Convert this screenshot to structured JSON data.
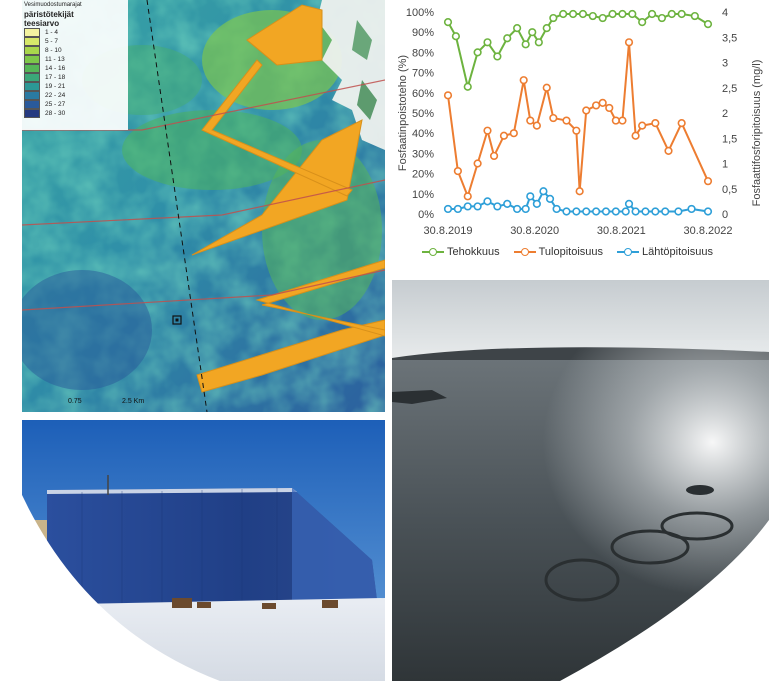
{
  "map": {
    "top_label": "Vesimuodostumarajat",
    "legend_title_1": "päristötekijät",
    "legend_title_2": "teesiarvo",
    "legend_items": [
      {
        "label": "1 - 4",
        "color": "#f3f3a0"
      },
      {
        "label": "5 - 7",
        "color": "#d6e86a"
      },
      {
        "label": "8 - 10",
        "color": "#a8d64c"
      },
      {
        "label": "11 - 13",
        "color": "#7ec74a"
      },
      {
        "label": "14 - 16",
        "color": "#55b657"
      },
      {
        "label": "17 - 18",
        "color": "#3aa779"
      },
      {
        "label": "19 - 21",
        "color": "#2c9896"
      },
      {
        "label": "22 - 24",
        "color": "#2a7aa2"
      },
      {
        "label": "25 - 27",
        "color": "#2a5a9a"
      },
      {
        "label": "28 - 30",
        "color": "#243a80"
      }
    ],
    "scale_left": "0.75",
    "scale_right": "2.5 Km"
  },
  "chart_data": {
    "type": "line",
    "y_left_label": "Fosfaatinpoistoteho (%)",
    "y_right_label": "Fosfaattifosforipitoisuus (mg/l)",
    "y_left_ticks": [
      "0%",
      "10%",
      "20%",
      "30%",
      "40%",
      "50%",
      "60%",
      "70%",
      "80%",
      "90%",
      "100%"
    ],
    "y_right_ticks": [
      "0",
      "0,5",
      "1",
      "1,5",
      "2",
      "2,5",
      "3",
      "3,5",
      "4"
    ],
    "x_ticks": [
      "30.8.2019",
      "30.8.2020",
      "30.8.2021",
      "30.8.2022"
    ],
    "ylim_left": [
      0,
      100
    ],
    "ylim_right": [
      0,
      4
    ],
    "legend_position": "bottom",
    "series": [
      {
        "name": "Tehokkuus",
        "axis": "left",
        "color": "#6db33f",
        "points": [
          [
            0.0,
            95
          ],
          [
            0.12,
            88
          ],
          [
            0.3,
            63
          ],
          [
            0.45,
            80
          ],
          [
            0.6,
            85
          ],
          [
            0.75,
            78
          ],
          [
            0.9,
            87
          ],
          [
            1.05,
            92
          ],
          [
            1.18,
            84
          ],
          [
            1.28,
            90
          ],
          [
            1.38,
            85
          ],
          [
            1.5,
            92
          ],
          [
            1.6,
            97
          ],
          [
            1.75,
            99
          ],
          [
            1.9,
            99
          ],
          [
            2.05,
            99
          ],
          [
            2.2,
            98
          ],
          [
            2.35,
            97
          ],
          [
            2.5,
            99
          ],
          [
            2.65,
            99
          ],
          [
            2.8,
            99
          ],
          [
            2.95,
            95
          ],
          [
            3.1,
            99
          ],
          [
            3.25,
            97
          ],
          [
            3.4,
            99
          ],
          [
            3.55,
            99
          ],
          [
            3.75,
            98
          ],
          [
            3.95,
            94
          ]
        ]
      },
      {
        "name": "Tulopitoisuus",
        "axis": "right",
        "color": "#ed7d31",
        "points": [
          [
            0.0,
            2.35
          ],
          [
            0.15,
            0.85
          ],
          [
            0.3,
            0.35
          ],
          [
            0.45,
            1.0
          ],
          [
            0.6,
            1.65
          ],
          [
            0.7,
            1.15
          ],
          [
            0.85,
            1.55
          ],
          [
            1.0,
            1.6
          ],
          [
            1.15,
            2.65
          ],
          [
            1.25,
            1.85
          ],
          [
            1.35,
            1.75
          ],
          [
            1.5,
            2.5
          ],
          [
            1.6,
            1.9
          ],
          [
            1.8,
            1.85
          ],
          [
            1.95,
            1.65
          ],
          [
            2.0,
            0.45
          ],
          [
            2.1,
            2.05
          ],
          [
            2.25,
            2.15
          ],
          [
            2.35,
            2.2
          ],
          [
            2.45,
            2.1
          ],
          [
            2.55,
            1.85
          ],
          [
            2.65,
            1.85
          ],
          [
            2.75,
            3.4
          ],
          [
            2.85,
            1.55
          ],
          [
            2.95,
            1.75
          ],
          [
            3.15,
            1.8
          ],
          [
            3.35,
            1.25
          ],
          [
            3.55,
            1.8
          ],
          [
            3.95,
            0.65
          ]
        ]
      },
      {
        "name": "Lähtöpitoisuus",
        "axis": "right",
        "color": "#2e9fd8",
        "points": [
          [
            0.0,
            0.1
          ],
          [
            0.15,
            0.1
          ],
          [
            0.3,
            0.15
          ],
          [
            0.45,
            0.15
          ],
          [
            0.6,
            0.25
          ],
          [
            0.75,
            0.15
          ],
          [
            0.9,
            0.2
          ],
          [
            1.05,
            0.1
          ],
          [
            1.18,
            0.1
          ],
          [
            1.25,
            0.35
          ],
          [
            1.35,
            0.2
          ],
          [
            1.45,
            0.45
          ],
          [
            1.55,
            0.3
          ],
          [
            1.65,
            0.1
          ],
          [
            1.8,
            0.05
          ],
          [
            1.95,
            0.05
          ],
          [
            2.1,
            0.05
          ],
          [
            2.25,
            0.05
          ],
          [
            2.4,
            0.05
          ],
          [
            2.55,
            0.05
          ],
          [
            2.7,
            0.05
          ],
          [
            2.75,
            0.2
          ],
          [
            2.85,
            0.05
          ],
          [
            3.0,
            0.05
          ],
          [
            3.15,
            0.05
          ],
          [
            3.3,
            0.05
          ],
          [
            3.5,
            0.05
          ],
          [
            3.7,
            0.1
          ],
          [
            3.95,
            0.05
          ]
        ]
      }
    ]
  }
}
